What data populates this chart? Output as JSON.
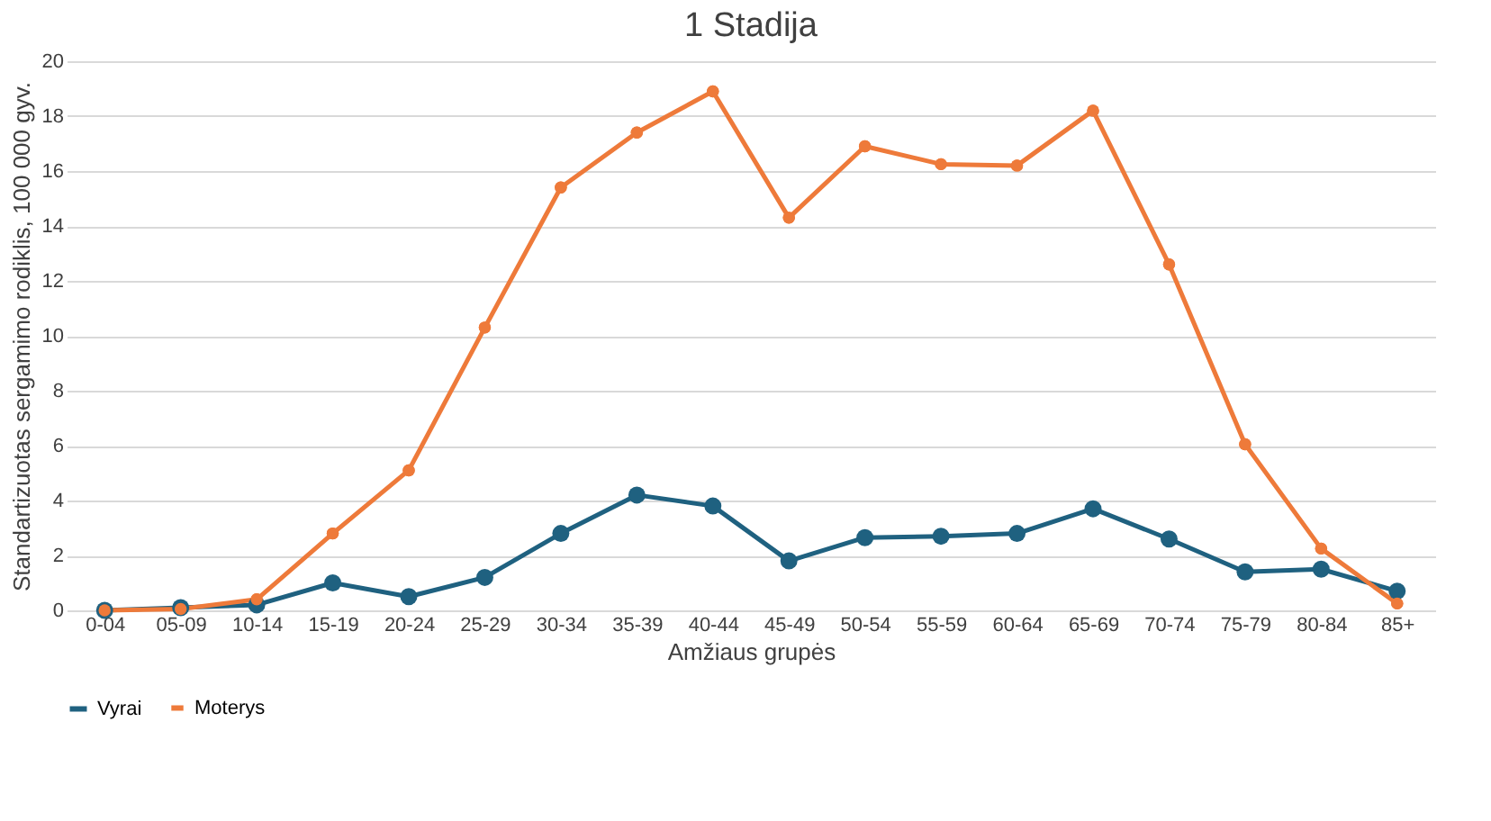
{
  "chart_data": {
    "type": "line",
    "title": "1 Stadija",
    "xlabel": "Amžiaus grupės",
    "ylabel": "Standartizuotas sergamimo rodiklis, 100 000 gyv.",
    "categories": [
      "0-04",
      "05-09",
      "10-14",
      "15-19",
      "20-24",
      "25-29",
      "30-34",
      "35-39",
      "40-44",
      "45-49",
      "50-54",
      "55-59",
      "60-64",
      "65-69",
      "70-74",
      "75-79",
      "80-84",
      "85+"
    ],
    "series": [
      {
        "name": "Vyrai",
        "color": "#1f6180",
        "values": [
          0,
          0.1,
          0.2,
          1.0,
          0.5,
          1.2,
          2.8,
          4.2,
          3.8,
          1.8,
          2.65,
          2.7,
          2.8,
          3.7,
          2.6,
          1.4,
          1.5,
          0.7
        ]
      },
      {
        "name": "Moterys",
        "color": "#ee7a3a",
        "values": [
          0,
          0.05,
          0.4,
          2.8,
          5.1,
          10.3,
          15.4,
          17.4,
          18.9,
          14.3,
          16.9,
          16.25,
          16.2,
          18.2,
          12.6,
          6.05,
          2.25,
          0.25
        ]
      }
    ],
    "ylim": [
      0,
      20
    ],
    "yticks": [
      0,
      2,
      4,
      6,
      8,
      10,
      12,
      14,
      16,
      18,
      20
    ],
    "grid": "y",
    "legend": "bottom",
    "marker": "circle",
    "line_style": "solid"
  }
}
